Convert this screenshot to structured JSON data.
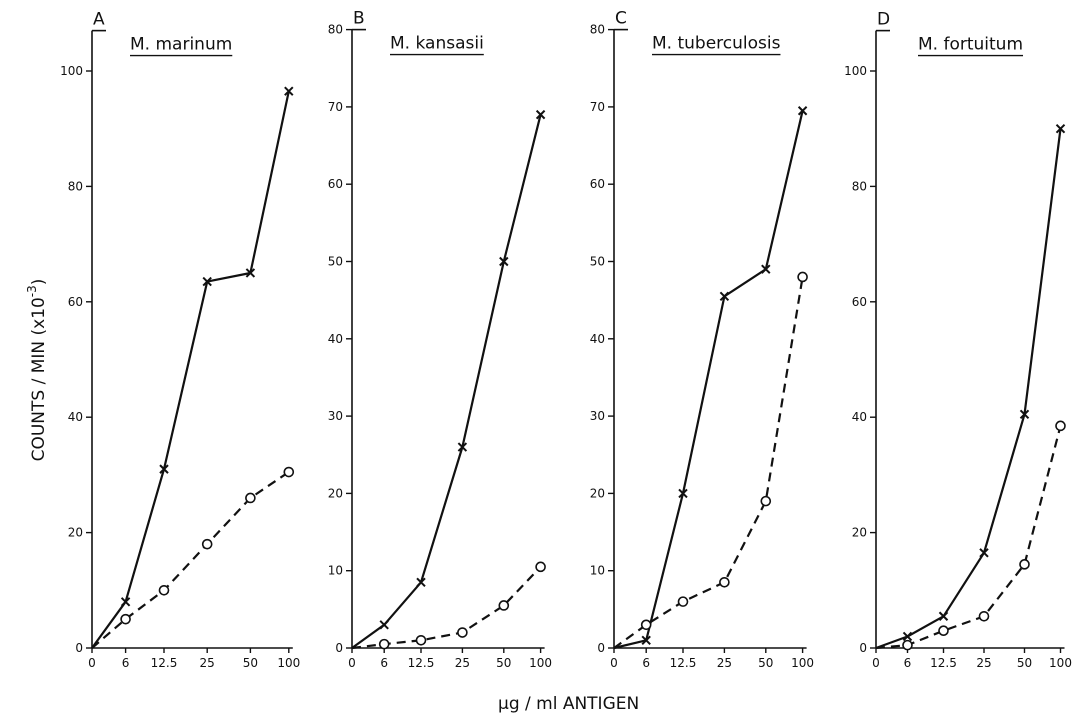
{
  "figure": {
    "ylabel": "COUNTS / MIN (x10",
    "ylabel_exp": "-3",
    "ylabel_close": ")",
    "xlabel": "µg / ml  ANTIGEN"
  },
  "chart_data": [
    {
      "type": "line",
      "panel": "A",
      "title": "M. marinum",
      "categories": [
        "0",
        "6",
        "12.5",
        "25",
        "50",
        "100"
      ],
      "x_ticks": [
        0,
        6,
        12.5,
        25,
        50,
        100
      ],
      "y_ticks": [
        0,
        20,
        40,
        60,
        80,
        100
      ],
      "ylim": [
        0,
        107
      ],
      "series": [
        {
          "marker": "x",
          "line_style": "solid",
          "values": [
            0,
            8,
            31,
            63.5,
            65,
            96.5
          ]
        },
        {
          "marker": "o",
          "line_style": "dashed",
          "values": [
            0,
            5,
            10,
            18,
            26,
            30.5
          ]
        }
      ]
    },
    {
      "type": "line",
      "panel": "B",
      "title": "M. kansasii",
      "categories": [
        "0",
        "6",
        "12.5",
        "25",
        "50",
        "100"
      ],
      "x_ticks": [
        0,
        6,
        12.5,
        25,
        50,
        100
      ],
      "y_ticks": [
        0,
        10,
        20,
        30,
        40,
        50,
        60,
        70,
        80
      ],
      "ylim": [
        0,
        80
      ],
      "series": [
        {
          "marker": "x",
          "line_style": "solid",
          "values": [
            0,
            3,
            8.5,
            26,
            50,
            69
          ]
        },
        {
          "marker": "o",
          "line_style": "dashed",
          "values": [
            0,
            0.5,
            1,
            2,
            5.5,
            10.5
          ]
        }
      ]
    },
    {
      "type": "line",
      "panel": "C",
      "title": "M. tuberculosis",
      "categories": [
        "0",
        "6",
        "12.5",
        "25",
        "50",
        "100"
      ],
      "x_ticks": [
        0,
        6,
        12.5,
        25,
        50,
        100
      ],
      "y_ticks": [
        0,
        10,
        20,
        30,
        40,
        50,
        60,
        70,
        80
      ],
      "ylim": [
        0,
        80
      ],
      "series": [
        {
          "marker": "x",
          "line_style": "solid",
          "values": [
            0,
            1,
            20,
            45.5,
            49,
            69.5
          ]
        },
        {
          "marker": "o",
          "line_style": "dashed",
          "values": [
            0,
            3,
            6,
            8.5,
            19,
            48
          ]
        }
      ]
    },
    {
      "type": "line",
      "panel": "D",
      "title": "M. fortuitum",
      "categories": [
        "0",
        "6",
        "12.5",
        "25",
        "50",
        "100"
      ],
      "x_ticks": [
        0,
        6,
        12.5,
        25,
        50,
        100
      ],
      "y_ticks": [
        0,
        20,
        40,
        60,
        80,
        100
      ],
      "ylim": [
        0,
        107
      ],
      "series": [
        {
          "marker": "x",
          "line_style": "solid",
          "values": [
            0,
            2,
            5.5,
            16.5,
            40.5,
            90
          ]
        },
        {
          "marker": "o",
          "line_style": "dashed",
          "values": [
            0,
            0.5,
            3,
            5.5,
            14.5,
            38.5
          ]
        }
      ]
    }
  ]
}
